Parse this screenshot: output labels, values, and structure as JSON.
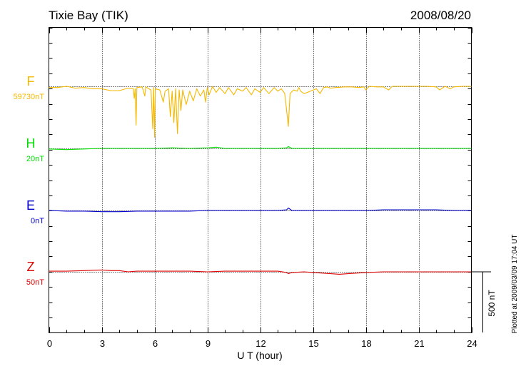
{
  "chart_data": {
    "type": "line",
    "title": "Tixie Bay (TIK)",
    "date": "2008/08/20",
    "xlabel": "U T (hour)",
    "xlim": [
      0,
      24
    ],
    "xticks": [
      "0",
      "3",
      "6",
      "9",
      "12",
      "15",
      "18",
      "21",
      "24"
    ],
    "grid": true,
    "plotted_note": "Plotted at 2009/03/09 17:04 UT",
    "scale_bar_label": "500 nT",
    "scale_bar_nT": 500,
    "series": [
      {
        "name": "F",
        "baseline_label": "59730nT",
        "color": "#f5b800",
        "baseline_nT": 59730,
        "points": [
          [
            0,
            -10
          ],
          [
            0.5,
            -10
          ],
          [
            1,
            0
          ],
          [
            1.5,
            -15
          ],
          [
            2,
            -10
          ],
          [
            2.5,
            -20
          ],
          [
            3,
            -20
          ],
          [
            3.5,
            -35
          ],
          [
            4,
            -35
          ],
          [
            4.5,
            -15
          ],
          [
            4.8,
            -20
          ],
          [
            4.85,
            -100
          ],
          [
            4.9,
            -20
          ],
          [
            4.95,
            -320
          ],
          [
            5,
            -10
          ],
          [
            5.3,
            -5
          ],
          [
            5.45,
            -80
          ],
          [
            5.5,
            -5
          ],
          [
            5.8,
            -30
          ],
          [
            5.9,
            -350
          ],
          [
            5.95,
            -10
          ],
          [
            6,
            -420
          ],
          [
            6.05,
            -20
          ],
          [
            6.3,
            -30
          ],
          [
            6.5,
            -130
          ],
          [
            6.6,
            -40
          ],
          [
            6.8,
            -20
          ],
          [
            6.9,
            -250
          ],
          [
            7,
            -40
          ],
          [
            7.1,
            -300
          ],
          [
            7.2,
            -20
          ],
          [
            7.3,
            -390
          ],
          [
            7.4,
            -30
          ],
          [
            7.5,
            -200
          ],
          [
            7.6,
            -30
          ],
          [
            7.8,
            -150
          ],
          [
            8,
            -40
          ],
          [
            8.2,
            -120
          ],
          [
            8.4,
            -20
          ],
          [
            8.6,
            -80
          ],
          [
            8.8,
            -30
          ],
          [
            8.9,
            -130
          ],
          [
            9,
            -10
          ],
          [
            9.1,
            -70
          ],
          [
            9.3,
            0
          ],
          [
            9.5,
            -50
          ],
          [
            9.7,
            -10
          ],
          [
            10,
            -60
          ],
          [
            10.2,
            -10
          ],
          [
            10.5,
            -70
          ],
          [
            10.7,
            -20
          ],
          [
            11,
            -40
          ],
          [
            11.2,
            -10
          ],
          [
            11.5,
            -70
          ],
          [
            11.7,
            -20
          ],
          [
            12,
            -50
          ],
          [
            12.2,
            -10
          ],
          [
            12.5,
            -60
          ],
          [
            12.8,
            -10
          ],
          [
            13,
            -40
          ],
          [
            13.2,
            -20
          ],
          [
            13.4,
            -60
          ],
          [
            13.6,
            -330
          ],
          [
            13.7,
            -60
          ],
          [
            13.9,
            -30
          ],
          [
            14.1,
            -40
          ],
          [
            14.2,
            -10
          ],
          [
            14.3,
            -40
          ],
          [
            14.5,
            -60
          ],
          [
            15.2,
            -20
          ],
          [
            15.4,
            -60
          ],
          [
            15.6,
            -10
          ],
          [
            15.8,
            -5
          ],
          [
            16,
            -15
          ],
          [
            16.3,
            -10
          ],
          [
            16.8,
            -5
          ],
          [
            17.2,
            -5
          ],
          [
            17.6,
            -10
          ],
          [
            17.9,
            -5
          ],
          [
            18,
            -30
          ],
          [
            18.2,
            0
          ],
          [
            18.6,
            -5
          ],
          [
            19,
            -5
          ],
          [
            19.3,
            -30
          ],
          [
            19.5,
            0
          ],
          [
            20,
            0
          ],
          [
            20.5,
            0
          ],
          [
            21,
            0
          ],
          [
            21.5,
            0
          ],
          [
            22,
            -5
          ],
          [
            22.2,
            -30
          ],
          [
            22.5,
            0
          ],
          [
            22.8,
            -20
          ],
          [
            23,
            -5
          ],
          [
            23.5,
            0
          ],
          [
            24,
            0
          ]
        ]
      },
      {
        "name": "H",
        "baseline_label": "20nT",
        "color": "#00dd00",
        "baseline_nT": 20,
        "points": [
          [
            0,
            -5
          ],
          [
            1,
            -10
          ],
          [
            2,
            -5
          ],
          [
            3,
            0
          ],
          [
            4,
            0
          ],
          [
            5,
            0
          ],
          [
            6,
            0
          ],
          [
            7,
            5
          ],
          [
            8,
            0
          ],
          [
            9,
            5
          ],
          [
            9.5,
            10
          ],
          [
            10,
            0
          ],
          [
            11,
            0
          ],
          [
            12,
            0
          ],
          [
            13,
            0
          ],
          [
            13.5,
            5
          ],
          [
            13.6,
            15
          ],
          [
            13.8,
            0
          ],
          [
            14.5,
            0
          ],
          [
            15,
            0
          ],
          [
            16,
            0
          ],
          [
            17,
            0
          ],
          [
            18,
            0
          ],
          [
            19,
            0
          ],
          [
            20,
            0
          ],
          [
            21,
            0
          ],
          [
            22,
            0
          ],
          [
            23,
            0
          ],
          [
            24,
            0
          ]
        ]
      },
      {
        "name": "E",
        "baseline_label": "0nT",
        "color": "#0000cc",
        "baseline_nT": 0,
        "points": [
          [
            0,
            0
          ],
          [
            1,
            -5
          ],
          [
            2,
            -5
          ],
          [
            3,
            -10
          ],
          [
            4,
            -10
          ],
          [
            5,
            -5
          ],
          [
            6,
            -5
          ],
          [
            7,
            -5
          ],
          [
            8,
            -5
          ],
          [
            9,
            0
          ],
          [
            10,
            0
          ],
          [
            11,
            0
          ],
          [
            12,
            0
          ],
          [
            13,
            0
          ],
          [
            13.5,
            5
          ],
          [
            13.6,
            20
          ],
          [
            13.8,
            0
          ],
          [
            14.5,
            0
          ],
          [
            15,
            0
          ],
          [
            16,
            0
          ],
          [
            17,
            0
          ],
          [
            18,
            0
          ],
          [
            19,
            5
          ],
          [
            20,
            5
          ],
          [
            21,
            5
          ],
          [
            22,
            5
          ],
          [
            23,
            0
          ],
          [
            24,
            0
          ]
        ]
      },
      {
        "name": "Z",
        "baseline_label": "50nT",
        "color": "#dd0000",
        "baseline_nT": 50,
        "points": [
          [
            0,
            5
          ],
          [
            1,
            5
          ],
          [
            2,
            10
          ],
          [
            3,
            15
          ],
          [
            3.5,
            10
          ],
          [
            4,
            10
          ],
          [
            4.5,
            0
          ],
          [
            5,
            5
          ],
          [
            6,
            5
          ],
          [
            7,
            5
          ],
          [
            8,
            5
          ],
          [
            9,
            0
          ],
          [
            10,
            5
          ],
          [
            11,
            5
          ],
          [
            12,
            5
          ],
          [
            13,
            5
          ],
          [
            13.5,
            -5
          ],
          [
            13.6,
            -15
          ],
          [
            13.8,
            -5
          ],
          [
            14.5,
            0
          ],
          [
            15,
            -5
          ],
          [
            16,
            -15
          ],
          [
            16.5,
            -20
          ],
          [
            17,
            -15
          ],
          [
            18,
            -5
          ],
          [
            19,
            0
          ],
          [
            20,
            0
          ],
          [
            21,
            0
          ],
          [
            22,
            0
          ],
          [
            23,
            0
          ],
          [
            24,
            0
          ]
        ]
      }
    ]
  }
}
